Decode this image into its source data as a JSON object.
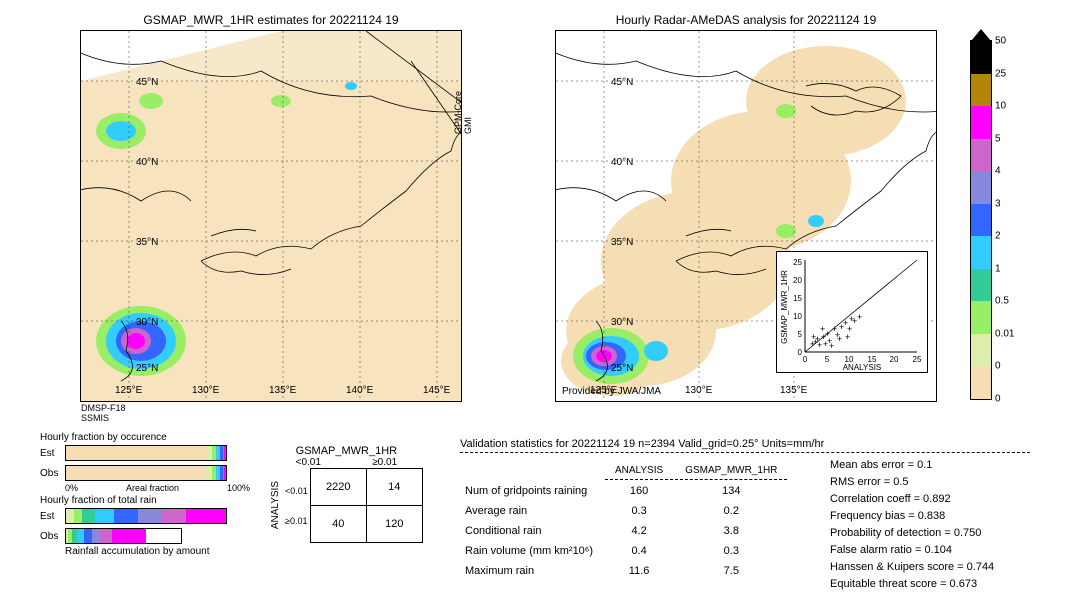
{
  "map_left": {
    "title": "GSMAP_MWR_1HR estimates for 20221124 19",
    "x_ticks": [
      "125°E",
      "130°E",
      "135°E",
      "140°E",
      "145°E"
    ],
    "y_ticks": [
      "25°N",
      "30°N",
      "35°N",
      "40°N",
      "45°N"
    ],
    "sensors": {
      "top_right": "GPM-Core\nGMI",
      "bottom_left": "DMSP-F18\nSSMIS"
    }
  },
  "map_right": {
    "title": "Hourly Radar-AMeDAS analysis for 20221124 19",
    "x_ticks": [
      "125°E",
      "130°E",
      "135°E"
    ],
    "y_ticks": [
      "25°N",
      "30°N",
      "35°N",
      "40°N",
      "45°N"
    ],
    "provider": "Provided by JWA/JMA",
    "inset": {
      "xlabel": "ANALYSIS",
      "ylabel": "GSMAP_MWR_1HR",
      "ticks": [
        0,
        5,
        10,
        15,
        20,
        25
      ]
    }
  },
  "colorbar": {
    "levels": [
      {
        "value": "50",
        "color": "#000000"
      },
      {
        "value": "25",
        "color": "#b3860a"
      },
      {
        "value": "10",
        "color": "#ff00ff"
      },
      {
        "value": "5",
        "color": "#cc66cc"
      },
      {
        "value": "4",
        "color": "#8888dd"
      },
      {
        "value": "3",
        "color": "#3366ff"
      },
      {
        "value": "2",
        "color": "#33ccff"
      },
      {
        "value": "1",
        "color": "#33cc99"
      },
      {
        "value": "0.5",
        "color": "#99ee66"
      },
      {
        "value": "0.01",
        "color": "#ddeeaa"
      },
      {
        "value": "0",
        "color": "#f5deb3"
      }
    ],
    "below_color": "#ffffff"
  },
  "fraction_bars": {
    "title1": "Hourly fraction by occurence",
    "title2": "Hourly fraction of total rain",
    "row_labels": [
      "Est",
      "Obs"
    ],
    "xaxis_left": "0%",
    "xaxis_right": "100%",
    "xaxis_label": "Areal fraction",
    "footer": "Rainfall accumulation by amount",
    "occurrence_est": [
      {
        "w": 0.88,
        "c": "#f5deb3"
      },
      {
        "w": 0.03,
        "c": "#ddeeaa"
      },
      {
        "w": 0.03,
        "c": "#99ee66"
      },
      {
        "w": 0.02,
        "c": "#33ccff"
      },
      {
        "w": 0.02,
        "c": "#3366ff"
      },
      {
        "w": 0.01,
        "c": "#8888dd"
      },
      {
        "w": 0.01,
        "c": "#ff00ff"
      }
    ],
    "occurrence_obs": [
      {
        "w": 0.87,
        "c": "#f5deb3"
      },
      {
        "w": 0.04,
        "c": "#ddeeaa"
      },
      {
        "w": 0.03,
        "c": "#99ee66"
      },
      {
        "w": 0.02,
        "c": "#33ccff"
      },
      {
        "w": 0.02,
        "c": "#3366ff"
      },
      {
        "w": 0.01,
        "c": "#8888dd"
      },
      {
        "w": 0.01,
        "c": "#ff00ff"
      }
    ],
    "totalrain_est": [
      {
        "w": 0.05,
        "c": "#ddeeaa"
      },
      {
        "w": 0.05,
        "c": "#99ee66"
      },
      {
        "w": 0.08,
        "c": "#33cc99"
      },
      {
        "w": 0.12,
        "c": "#33ccff"
      },
      {
        "w": 0.15,
        "c": "#3366ff"
      },
      {
        "w": 0.15,
        "c": "#8888dd"
      },
      {
        "w": 0.15,
        "c": "#cc66cc"
      },
      {
        "w": 0.25,
        "c": "#ff00ff"
      }
    ],
    "totalrain_obs": [
      {
        "w": 0.02,
        "c": "#ddeeaa"
      },
      {
        "w": 0.03,
        "c": "#99ee66"
      },
      {
        "w": 0.05,
        "c": "#33cc99"
      },
      {
        "w": 0.06,
        "c": "#33ccff"
      },
      {
        "w": 0.07,
        "c": "#3366ff"
      },
      {
        "w": 0.07,
        "c": "#8888dd"
      },
      {
        "w": 0.1,
        "c": "#cc66cc"
      },
      {
        "w": 0.3,
        "c": "#ff00ff"
      }
    ]
  },
  "contingency": {
    "col_header_title": "GSMAP_MWR_1HR",
    "row_header_title": "ANALYSIS",
    "col_labels": [
      "<0.01",
      "≥0.01"
    ],
    "row_labels": [
      "<0.01",
      "≥0.01"
    ],
    "cells": [
      [
        2220,
        14
      ],
      [
        40,
        120
      ]
    ]
  },
  "validation": {
    "title": "Validation statistics for 20221124 19  n=2394 Valid_grid=0.25° Units=mm/hr",
    "col_headers": [
      "ANALYSIS",
      "GSMAP_MWR_1HR"
    ],
    "rows": [
      {
        "label": "Num of gridpoints raining",
        "a": "160",
        "g": "134"
      },
      {
        "label": "Average rain",
        "a": "0.3",
        "g": "0.2"
      },
      {
        "label": "Conditional rain",
        "a": "4.2",
        "g": "3.8"
      },
      {
        "label": "Rain volume (mm km²10⁶)",
        "a": "0.4",
        "g": "0.3"
      },
      {
        "label": "Maximum rain",
        "a": "11.6",
        "g": "7.5"
      }
    ],
    "metrics": [
      "Mean abs error =   0.1",
      "RMS error =   0.5",
      "Correlation coeff =  0.892",
      "Frequency bias =  0.838",
      "Probability of detection =  0.750",
      "False alarm ratio =  0.104",
      "Hanssen & Kuipers score =  0.744",
      "Equitable threat score =  0.673"
    ]
  }
}
